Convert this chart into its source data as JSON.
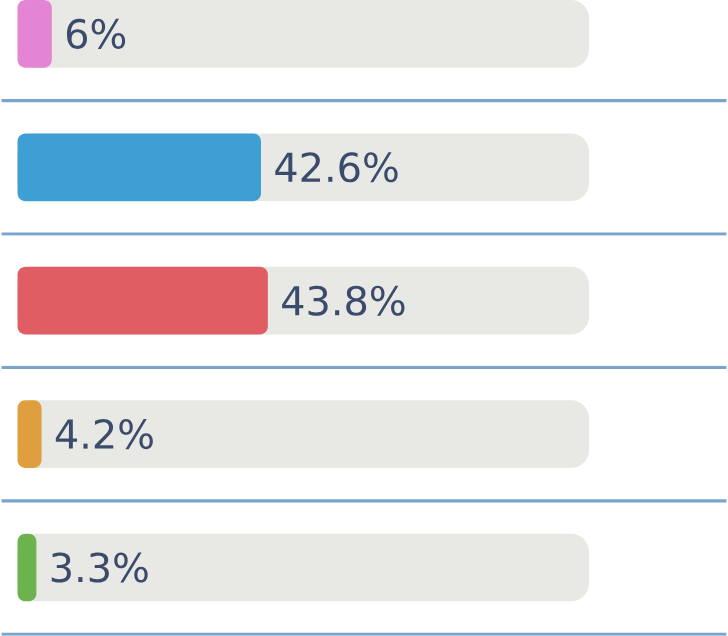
{
  "chart_data": {
    "type": "bar",
    "orientation": "horizontal",
    "categories": [
      null,
      null,
      null,
      null,
      null
    ],
    "values": [
      6,
      42.6,
      43.8,
      4.2,
      3.3
    ],
    "colors": [
      "#e384d4",
      "#3d9fd3",
      "#df5d63",
      "#e09f3e",
      "#6cb34f"
    ],
    "value_labels": [
      "6%",
      "42.6%",
      "43.8%",
      "4.2%",
      "3.3%"
    ],
    "xlim": [
      0,
      100
    ]
  }
}
